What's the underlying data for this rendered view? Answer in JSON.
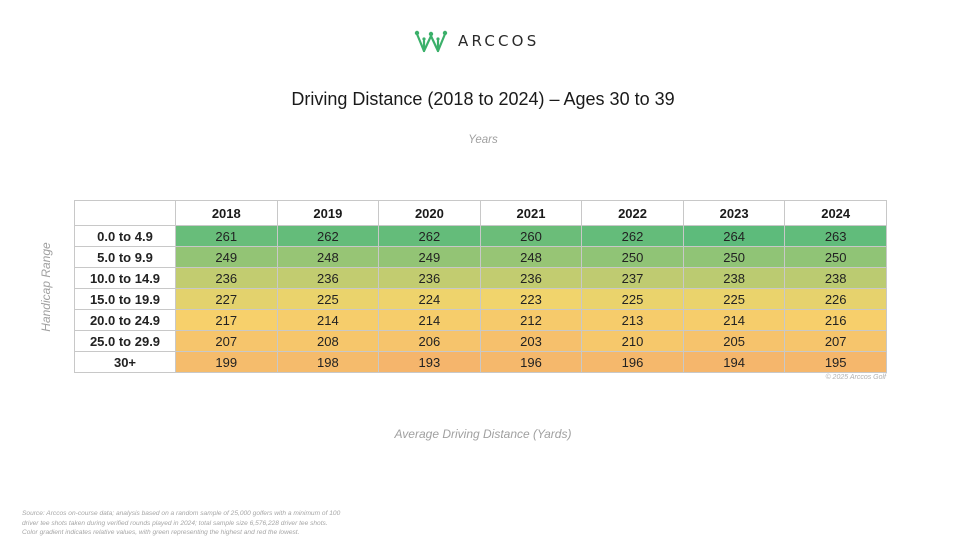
{
  "brand": {
    "name": "ARCCOS",
    "color": "#3bb06a"
  },
  "title": "Driving Distance (2018 to 2024) – Ages 30 to 39",
  "copyright": "© 2025 Arccos Golf",
  "source_lines": [
    "Source: Arccos on-course data; analysis based on a random sample of 25,000 golfers with a minimum of 100",
    "driver tee shots taken during verified rounds played in 2024; total sample size 6,576,228 driver tee shots.",
    "Color gradient indicates relative values, with green representing the highest and red the lowest."
  ],
  "chart_data": {
    "type": "heatmap",
    "title": "Driving Distance (2018 to 2024) – Ages 30 to 39",
    "xlabel": "Years",
    "ylabel": "Handicap Range",
    "value_label": "Average Driving Distance (Yards)",
    "columns": [
      "2018",
      "2019",
      "2020",
      "2021",
      "2022",
      "2023",
      "2024"
    ],
    "rows": [
      "0.0 to 4.9",
      "5.0 to 9.9",
      "10.0 to 14.9",
      "15.0 to 19.9",
      "20.0 to 24.9",
      "25.0 to 29.9",
      "30+"
    ],
    "values": [
      [
        261,
        262,
        262,
        260,
        262,
        264,
        263
      ],
      [
        249,
        248,
        249,
        248,
        250,
        250,
        250
      ],
      [
        236,
        236,
        236,
        236,
        237,
        238,
        238
      ],
      [
        227,
        225,
        224,
        223,
        225,
        225,
        226
      ],
      [
        217,
        214,
        214,
        212,
        213,
        214,
        216
      ],
      [
        207,
        208,
        206,
        203,
        210,
        205,
        207
      ],
      [
        199,
        198,
        193,
        196,
        196,
        194,
        195
      ]
    ],
    "color_scale": {
      "high": "#5dbb7b",
      "mid": "#f7d56b",
      "low": "#f5b56c"
    }
  }
}
